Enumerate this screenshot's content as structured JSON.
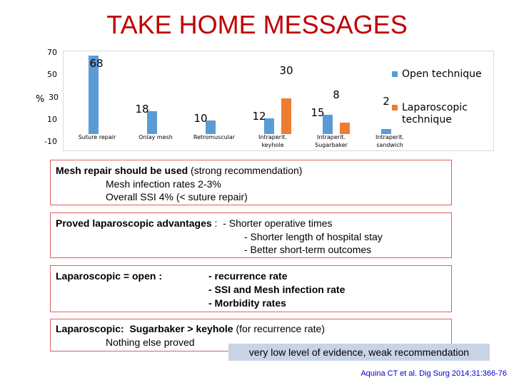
{
  "title": "TAKE HOME MESSAGES",
  "chart_data": {
    "type": "bar",
    "y_axis_label": "%",
    "y_ticks": [
      "70",
      "50",
      "30",
      "10",
      "-10"
    ],
    "ylim": [
      -10,
      70
    ],
    "categories": [
      "Suture repair",
      "Onlay mesh",
      "Retromuscular",
      "Intraperit. keyhole",
      "Intraperit. Sugarbaker",
      "Intraperit. sandwich"
    ],
    "categories_lines": [
      [
        "Suture repair"
      ],
      [
        "Onlay mesh"
      ],
      [
        "Retromuscular"
      ],
      [
        "Intraperit.",
        "keyhole"
      ],
      [
        "Intraperit.",
        "Sugarbaker"
      ],
      [
        "Intraperit.",
        "sandwich"
      ]
    ],
    "series": [
      {
        "name": "Open technique",
        "color": "#5b9bd5",
        "values": [
          68,
          18,
          10,
          12,
          15,
          2
        ]
      },
      {
        "name": "Laparoscopic technique",
        "color": "#ed7d31",
        "values": [
          null,
          null,
          null,
          30,
          8,
          null
        ]
      }
    ],
    "data_labels": [
      {
        "category_index": 0,
        "series_index": 0,
        "text": "68"
      },
      {
        "category_index": 1,
        "series_index": 0,
        "text": "18"
      },
      {
        "category_index": 2,
        "series_index": 0,
        "text": "10"
      },
      {
        "category_index": 3,
        "series_index": 0,
        "text": "12"
      },
      {
        "category_index": 3,
        "series_index": 1,
        "text": "30"
      },
      {
        "category_index": 4,
        "series_index": 0,
        "text": "15"
      },
      {
        "category_index": 4,
        "series_index": 1,
        "text": "8"
      },
      {
        "category_index": 5,
        "series_index": 0,
        "text": "2"
      }
    ],
    "legend_position": "right",
    "grid": false
  },
  "box1": {
    "line1_bold": "Mesh repair should be used",
    "line1_rest": " (strong recommendation)",
    "line2": "Mesh infection rates 2-3%",
    "line3": "Overall SSI 4% (< suture repair)"
  },
  "box2": {
    "heading": "Proved laparoscopic advantages",
    "sep": " :  ",
    "item1": "- Shorter operative times",
    "item2": "- Shorter length of hospital stay",
    "item3": "- Better short-term outcomes"
  },
  "box3": {
    "heading": "Laparoscopic = open :",
    "item1": "- recurrence rate",
    "item2": "- SSI and Mesh infection rate",
    "item3": "- Morbidity rates"
  },
  "box4": {
    "line1_bold": "Laparoscopic:  Sugarbaker > keyhole",
    "line1_rest": " (for recurrence rate)",
    "line2": "Nothing else proved"
  },
  "note": "very low level of evidence, weak recommendation",
  "citation": "Aquina CT et al. Dig Surg 2014;31:366-76"
}
